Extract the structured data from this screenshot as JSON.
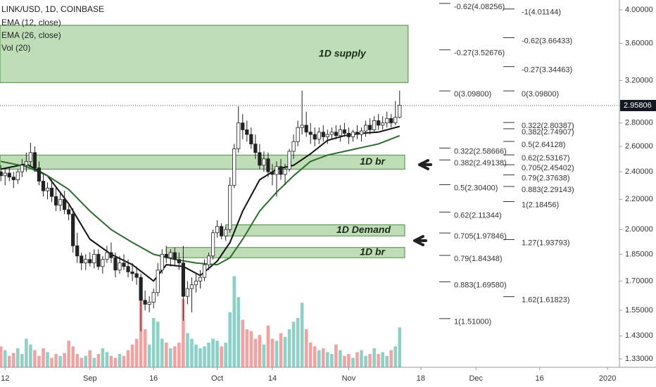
{
  "chart_data": {
    "type": "candlestick",
    "title": "LINK/USD, 1D, COINBASE",
    "log_scale": true,
    "ylim": [
      1.295,
      4.127
    ],
    "yticks": [
      {
        "value": 1.33,
        "label": "1.33000"
      },
      {
        "value": 1.43,
        "label": "1.43000"
      },
      {
        "value": 1.55,
        "label": "1.55000"
      },
      {
        "value": 1.7,
        "label": "1.70000"
      },
      {
        "value": 1.85,
        "label": "1.85000"
      },
      {
        "value": 2,
        "label": "2.00000"
      },
      {
        "value": 2.2,
        "label": "2.20000"
      },
      {
        "value": 2.4,
        "label": "2.40000"
      },
      {
        "value": 2.6,
        "label": "2.60000"
      },
      {
        "value": 2.8,
        "label": "2.80000"
      },
      {
        "value": 3.2,
        "label": "3.20000"
      },
      {
        "value": 3.6,
        "label": "3.60000"
      },
      {
        "value": 4,
        "label": "4.00000"
      }
    ],
    "xlim": [
      -1.2,
      144.8
    ],
    "xticks": [
      {
        "value": 0,
        "label": "12"
      },
      {
        "value": 20,
        "label": "Sep"
      },
      {
        "value": 35,
        "label": "16"
      },
      {
        "value": 50,
        "label": "Oct"
      },
      {
        "value": 63,
        "label": "14"
      },
      {
        "value": 81,
        "label": "Nov"
      },
      {
        "value": 98,
        "label": "18"
      },
      {
        "value": 111,
        "label": "Dec"
      },
      {
        "value": 126,
        "label": "16"
      },
      {
        "value": 142,
        "label": "2020"
      }
    ],
    "last_price": {
      "value": 2.95806,
      "label": "2.95806"
    },
    "up_color": "#ffffff",
    "down_color": "#222222",
    "x": [
      -1,
      0,
      1,
      2,
      3,
      4,
      5,
      6,
      7,
      8,
      9,
      10,
      11,
      12,
      13,
      14,
      15,
      16,
      17,
      18,
      19,
      20,
      21,
      22,
      23,
      24,
      25,
      26,
      27,
      28,
      29,
      30,
      31,
      32,
      33,
      34,
      35,
      36,
      37,
      38,
      39,
      40,
      41,
      42,
      43,
      44,
      45,
      46,
      47,
      48,
      49,
      50,
      51,
      52,
      53,
      54,
      55,
      56,
      57,
      58,
      59,
      60,
      61,
      62,
      63,
      64,
      65,
      66,
      67,
      68,
      69,
      70,
      71,
      72,
      73,
      74,
      75,
      76,
      77,
      78,
      79,
      80,
      81,
      82,
      83,
      84,
      85,
      86,
      87,
      88,
      89,
      90,
      91,
      92,
      93
    ],
    "ohlc": [
      [
        2.4,
        2.45,
        2.33,
        2.37
      ],
      [
        2.37,
        2.42,
        2.3,
        2.39
      ],
      [
        2.39,
        2.43,
        2.33,
        2.36
      ],
      [
        2.36,
        2.4,
        2.28,
        2.34
      ],
      [
        2.34,
        2.42,
        2.31,
        2.4
      ],
      [
        2.4,
        2.5,
        2.36,
        2.45
      ],
      [
        2.45,
        2.55,
        2.4,
        2.48
      ],
      [
        2.48,
        2.63,
        2.44,
        2.55
      ],
      [
        2.55,
        2.6,
        2.4,
        2.43
      ],
      [
        2.43,
        2.48,
        2.3,
        2.33
      ],
      [
        2.33,
        2.38,
        2.22,
        2.26
      ],
      [
        2.26,
        2.32,
        2.2,
        2.28
      ],
      [
        2.28,
        2.34,
        2.18,
        2.22
      ],
      [
        2.22,
        2.28,
        2.12,
        2.16
      ],
      [
        2.16,
        2.24,
        2.12,
        2.2
      ],
      [
        2.2,
        2.26,
        2.1,
        2.13
      ],
      [
        2.13,
        2.16,
        2.06,
        2.1
      ],
      [
        2.1,
        2.14,
        1.86,
        1.9
      ],
      [
        1.9,
        1.98,
        1.8,
        1.84
      ],
      [
        1.84,
        1.86,
        1.76,
        1.8
      ],
      [
        1.8,
        1.85,
        1.76,
        1.82
      ],
      [
        1.82,
        1.86,
        1.78,
        1.8
      ],
      [
        1.8,
        1.88,
        1.77,
        1.85
      ],
      [
        1.85,
        1.88,
        1.76,
        1.78
      ],
      [
        1.78,
        1.84,
        1.74,
        1.82
      ],
      [
        1.82,
        1.9,
        1.8,
        1.86
      ],
      [
        1.86,
        1.92,
        1.8,
        1.83
      ],
      [
        1.83,
        1.86,
        1.72,
        1.76
      ],
      [
        1.76,
        1.84,
        1.74,
        1.8
      ],
      [
        1.8,
        1.85,
        1.76,
        1.78
      ],
      [
        1.78,
        1.82,
        1.72,
        1.75
      ],
      [
        1.75,
        1.8,
        1.7,
        1.74
      ],
      [
        1.74,
        1.78,
        1.68,
        1.72
      ],
      [
        1.72,
        1.74,
        1.45,
        1.6
      ],
      [
        1.6,
        1.65,
        1.55,
        1.58
      ],
      [
        1.58,
        1.62,
        1.54,
        1.59
      ],
      [
        1.59,
        1.66,
        1.56,
        1.64
      ],
      [
        1.64,
        1.8,
        1.62,
        1.76
      ],
      [
        1.76,
        1.88,
        1.74,
        1.85
      ],
      [
        1.85,
        1.9,
        1.8,
        1.83
      ],
      [
        1.83,
        1.88,
        1.78,
        1.86
      ],
      [
        1.86,
        1.89,
        1.79,
        1.82
      ],
      [
        1.82,
        1.86,
        1.76,
        1.8
      ],
      [
        1.8,
        1.9,
        1.5,
        1.62
      ],
      [
        1.62,
        1.7,
        1.58,
        1.66
      ],
      [
        1.66,
        1.72,
        1.54,
        1.68
      ],
      [
        1.68,
        1.74,
        1.64,
        1.7
      ],
      [
        1.7,
        1.76,
        1.66,
        1.72
      ],
      [
        1.72,
        1.82,
        1.7,
        1.79
      ],
      [
        1.79,
        1.86,
        1.76,
        1.84
      ],
      [
        1.84,
        2.0,
        1.82,
        1.98
      ],
      [
        1.98,
        2.06,
        1.95,
        2.02
      ],
      [
        2.02,
        2.04,
        1.94,
        1.96
      ],
      [
        1.96,
        2.02,
        1.93,
        2.0
      ],
      [
        2.0,
        2.36,
        1.98,
        2.3
      ],
      [
        2.3,
        2.62,
        2.28,
        2.58
      ],
      [
        2.58,
        2.95,
        2.55,
        2.8
      ],
      [
        2.8,
        2.88,
        2.66,
        2.74
      ],
      [
        2.74,
        2.82,
        2.64,
        2.7
      ],
      [
        2.7,
        2.76,
        2.58,
        2.62
      ],
      [
        2.62,
        2.7,
        2.5,
        2.55
      ],
      [
        2.55,
        2.62,
        2.42,
        2.45
      ],
      [
        2.45,
        2.56,
        2.4,
        2.5
      ],
      [
        2.5,
        2.55,
        2.36,
        2.4
      ],
      [
        2.4,
        2.46,
        2.3,
        2.38
      ],
      [
        2.38,
        2.48,
        2.22,
        2.44
      ],
      [
        2.44,
        2.5,
        2.34,
        2.38
      ],
      [
        2.38,
        2.46,
        2.3,
        2.42
      ],
      [
        2.42,
        2.58,
        2.4,
        2.56
      ],
      [
        2.56,
        2.7,
        2.5,
        2.64
      ],
      [
        2.64,
        2.82,
        2.6,
        2.76
      ],
      [
        2.76,
        3.1,
        2.7,
        2.78
      ],
      [
        2.78,
        2.9,
        2.68,
        2.72
      ],
      [
        2.72,
        2.8,
        2.62,
        2.7
      ],
      [
        2.7,
        2.76,
        2.6,
        2.66
      ],
      [
        2.66,
        2.76,
        2.62,
        2.72
      ],
      [
        2.72,
        2.78,
        2.64,
        2.68
      ],
      [
        2.68,
        2.74,
        2.62,
        2.7
      ],
      [
        2.7,
        2.76,
        2.66,
        2.72
      ],
      [
        2.72,
        2.78,
        2.66,
        2.69
      ],
      [
        2.69,
        2.78,
        2.64,
        2.74
      ],
      [
        2.74,
        2.8,
        2.68,
        2.71
      ],
      [
        2.71,
        2.76,
        2.62,
        2.68
      ],
      [
        2.68,
        2.74,
        2.64,
        2.72
      ],
      [
        2.72,
        2.78,
        2.66,
        2.7
      ],
      [
        2.7,
        2.76,
        2.64,
        2.73
      ],
      [
        2.73,
        2.82,
        2.68,
        2.78
      ],
      [
        2.78,
        2.84,
        2.7,
        2.74
      ],
      [
        2.74,
        2.86,
        2.72,
        2.82
      ],
      [
        2.82,
        2.88,
        2.74,
        2.78
      ],
      [
        2.78,
        2.86,
        2.74,
        2.8
      ],
      [
        2.8,
        2.9,
        2.76,
        2.84
      ],
      [
        2.84,
        2.88,
        2.76,
        2.8
      ],
      [
        2.8,
        3.0,
        2.78,
        2.85
      ],
      [
        2.85,
        3.1,
        2.84,
        2.96
      ]
    ],
    "volume": {
      "name": "Vol (20)",
      "vlim": [
        0,
        100
      ],
      "up_color": "#8fd0c6",
      "down_color": "#f0a3a3",
      "values": [
        22,
        18,
        12,
        15,
        20,
        14,
        30,
        24,
        18,
        12,
        20,
        16,
        10,
        14,
        12,
        15,
        28,
        22,
        14,
        10,
        12,
        18,
        10,
        14,
        20,
        16,
        12,
        10,
        14,
        12,
        18,
        24,
        30,
        78,
        40,
        24,
        52,
        48,
        30,
        26,
        20,
        22,
        26,
        72,
        36,
        30,
        24,
        20,
        22,
        26,
        30,
        28,
        22,
        26,
        58,
        96,
        74,
        50,
        40,
        38,
        30,
        34,
        24,
        44,
        30,
        28,
        36,
        32,
        40,
        48,
        52,
        68,
        40,
        26,
        22,
        18,
        20,
        16,
        14,
        24,
        18,
        12,
        14,
        10,
        16,
        18,
        12,
        14,
        20,
        14,
        16,
        12,
        18,
        22,
        42
      ]
    },
    "ema_lines": [
      {
        "name": "EMA (12, close)",
        "color": "#111111",
        "x": [
          -1,
          5,
          10,
          15,
          20,
          25,
          30,
          35,
          38,
          42,
          46,
          50,
          53,
          56,
          60,
          64,
          68,
          72,
          76,
          80,
          84,
          88,
          93
        ],
        "values": [
          2.42,
          2.46,
          2.37,
          2.17,
          1.94,
          1.85,
          1.79,
          1.7,
          1.79,
          1.78,
          1.73,
          1.81,
          1.92,
          2.12,
          2.34,
          2.42,
          2.45,
          2.54,
          2.65,
          2.69,
          2.71,
          2.72,
          2.77
        ]
      },
      {
        "name": "EMA (26, close)",
        "color": "#2f6b2f",
        "x": [
          -1,
          5,
          10,
          15,
          20,
          25,
          30,
          35,
          40,
          45,
          50,
          53,
          56,
          60,
          64,
          68,
          72,
          76,
          80,
          84,
          88,
          93
        ],
        "values": [
          2.48,
          2.44,
          2.37,
          2.27,
          2.12,
          2.0,
          1.92,
          1.85,
          1.82,
          1.8,
          1.79,
          1.83,
          1.94,
          2.12,
          2.25,
          2.37,
          2.48,
          2.53,
          2.56,
          2.59,
          2.62,
          2.69
        ]
      }
    ],
    "zones": [
      {
        "label": "1D supply",
        "top": 3.81,
        "bottom": 3.18,
        "x0": -1.2,
        "x1": 95
      },
      {
        "label": "1D br",
        "top": 2.53,
        "bottom": 2.42,
        "x0": -1.2,
        "x1": 94.2
      },
      {
        "label": "1D Demand",
        "top": 2.03,
        "bottom": 1.96,
        "x0": 52,
        "x1": 94.2
      },
      {
        "label": "1D br",
        "top": 1.89,
        "bottom": 1.83,
        "x0": 38,
        "x1": 94.2
      }
    ],
    "fib_left": [
      {
        "value": 4.08256,
        "label": "-0.62(4.08256)"
      },
      {
        "value": 3.52676,
        "label": "-0.27(3.52676)"
      },
      {
        "value": 3.098,
        "label": "0(3.09800)"
      },
      {
        "value": 2.58666,
        "label": "0.322(2.58666)"
      },
      {
        "value": 2.49138,
        "label": "0.382(2.49138)"
      },
      {
        "value": 2.304,
        "label": "0.5(2.30400)"
      },
      {
        "value": 2.11344,
        "label": "0.62(2.11344)"
      },
      {
        "value": 1.97846,
        "label": "0.705(1.97846)"
      },
      {
        "value": 1.84348,
        "label": "0.79(1.84348)"
      },
      {
        "value": 1.6958,
        "label": "0.883(1.69580)"
      },
      {
        "value": 1.51,
        "label": "1(1.51000)"
      }
    ],
    "fib_right": [
      {
        "value": 4.01144,
        "label": "-1(4.01144)"
      },
      {
        "value": 3.66433,
        "label": "-0.62(3.66433)"
      },
      {
        "value": 3.34463,
        "label": "-0.27(3.34463)"
      },
      {
        "value": 3.098,
        "label": "0(3.09800)"
      },
      {
        "value": 2.80387,
        "label": "0.322(2.80387)"
      },
      {
        "value": 2.74907,
        "label": "0.382(2.74907)"
      },
      {
        "value": 2.64128,
        "label": "0.5(2.64128)"
      },
      {
        "value": 2.53167,
        "label": "0.62(2.53167)"
      },
      {
        "value": 2.45402,
        "label": "0.705(2.45402)"
      },
      {
        "value": 2.37638,
        "label": "0.79(2.37638)"
      },
      {
        "value": 2.29143,
        "label": "0.883(2.29143)"
      },
      {
        "value": 2.18456,
        "label": "1(2.18456)"
      },
      {
        "value": 1.93793,
        "label": "1.27(1.93793)"
      },
      {
        "value": 1.61823,
        "label": "1.62(1.61823)"
      }
    ]
  }
}
